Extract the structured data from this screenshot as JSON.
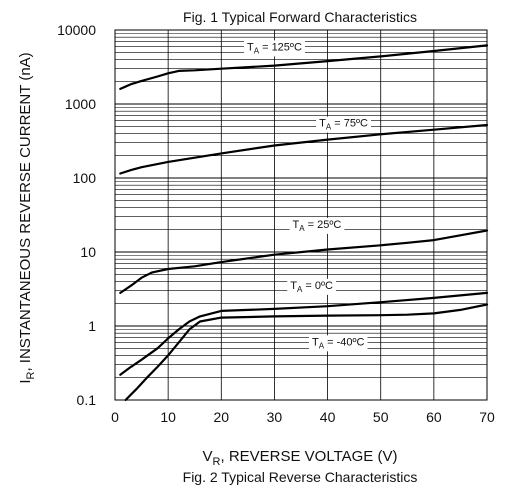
{
  "chart_data": {
    "type": "line",
    "title_top": "Fig. 1  Typical Forward Characteristics",
    "title": "Fig. 2  Typical Reverse Characteristics",
    "xlabel": {
      "main": "V",
      "sub": "R",
      "rest": ", REVERSE VOLTAGE (V)"
    },
    "ylabel": {
      "main": "I",
      "sub": "R",
      "rest": ", INSTANTANEOUS REVERSE CURRENT (nA)"
    },
    "xlim": [
      0,
      70
    ],
    "ylim": [
      0.1,
      10000
    ],
    "yscale": "log",
    "x_ticks": [
      0,
      10,
      20,
      30,
      40,
      50,
      60,
      70
    ],
    "x_tick_labels": [
      "0",
      "10",
      "20",
      "30",
      "40",
      "50",
      "60",
      "70"
    ],
    "y_ticks": [
      0.1,
      1,
      10,
      100,
      1000,
      10000
    ],
    "y_tick_labels": [
      "0.1",
      "1",
      "10",
      "100",
      "1000",
      "10000"
    ],
    "grid": true,
    "series": [
      {
        "name": "T_A = 125°C",
        "label": {
          "pre": "T",
          "sub": "A",
          "post": " = 125ºC"
        },
        "x": [
          1,
          3,
          5,
          8,
          10,
          12,
          15,
          20,
          30,
          40,
          50,
          60,
          70
        ],
        "y": [
          1600,
          1850,
          2050,
          2350,
          2600,
          2800,
          2850,
          3000,
          3300,
          3800,
          4400,
          5200,
          6200
        ]
      },
      {
        "name": "T_A = 75°C",
        "label": {
          "pre": "T",
          "sub": "A",
          "post": " = 75ºC"
        },
        "x": [
          1,
          3,
          5,
          10,
          20,
          30,
          40,
          50,
          60,
          70
        ],
        "y": [
          115,
          128,
          140,
          165,
          215,
          275,
          330,
          390,
          450,
          520
        ]
      },
      {
        "name": "T_A = 25°C",
        "label": {
          "pre": "T",
          "sub": "A",
          "post": " = 25ºC"
        },
        "x": [
          1,
          3,
          5,
          7,
          10,
          15,
          20,
          30,
          40,
          50,
          55,
          60,
          65,
          70
        ],
        "y": [
          2.8,
          3.5,
          4.5,
          5.3,
          5.9,
          6.4,
          7.3,
          9.2,
          10.8,
          12.3,
          13.3,
          14.5,
          16.8,
          19.5
        ]
      },
      {
        "name": "T_A = 0°C",
        "label": {
          "pre": "T",
          "sub": "A",
          "post": " = 0ºC"
        },
        "x": [
          1,
          3,
          5,
          8,
          10,
          12,
          14,
          16,
          20,
          30,
          40,
          50,
          60,
          70
        ],
        "y": [
          0.22,
          0.28,
          0.35,
          0.5,
          0.68,
          0.9,
          1.15,
          1.35,
          1.6,
          1.7,
          1.85,
          2.1,
          2.4,
          2.8
        ]
      },
      {
        "name": "T_A = -40°C",
        "label": {
          "pre": "T",
          "sub": "A",
          "post": " = -40ºC"
        },
        "x": [
          2,
          4,
          6,
          8,
          10,
          12,
          14,
          16,
          20,
          30,
          40,
          50,
          55,
          60,
          65,
          70
        ],
        "y": [
          0.1,
          0.14,
          0.2,
          0.28,
          0.4,
          0.6,
          0.9,
          1.15,
          1.3,
          1.35,
          1.38,
          1.4,
          1.42,
          1.48,
          1.65,
          1.95
        ]
      }
    ]
  }
}
